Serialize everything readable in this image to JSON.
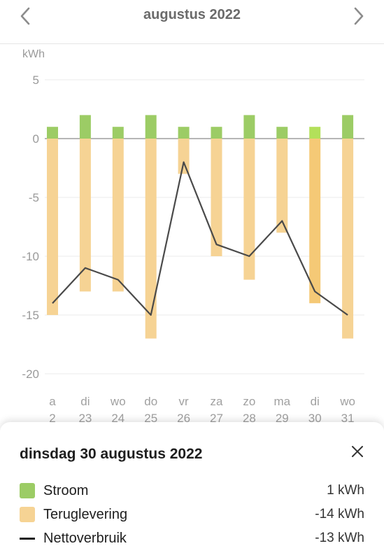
{
  "header": {
    "title": "augustus 2022",
    "prev_icon": "chevron-left-icon",
    "next_icon": "chevron-right-icon"
  },
  "chart_data": {
    "type": "bar",
    "y_unit": "kWh",
    "ylim": [
      -20,
      5
    ],
    "y_ticks": [
      5,
      0,
      -5,
      -10,
      -15,
      -20
    ],
    "grid": true,
    "categories": [
      {
        "day": "a",
        "date": "2"
      },
      {
        "day": "di",
        "date": "23"
      },
      {
        "day": "wo",
        "date": "24"
      },
      {
        "day": "do",
        "date": "25"
      },
      {
        "day": "vr",
        "date": "26"
      },
      {
        "day": "za",
        "date": "27"
      },
      {
        "day": "zo",
        "date": "28"
      },
      {
        "day": "ma",
        "date": "29"
      },
      {
        "day": "di",
        "date": "30"
      },
      {
        "day": "wo",
        "date": "31"
      }
    ],
    "selected_index": 8,
    "series": [
      {
        "name": "Stroom",
        "kind": "bar",
        "color": "#9ccc65",
        "selected_color": "#b3e05a",
        "values": [
          1,
          2,
          1,
          2,
          1,
          1,
          2,
          1,
          1,
          2
        ]
      },
      {
        "name": "Teruglevering",
        "kind": "bar",
        "color": "#f6d394",
        "selected_color": "#f5c976",
        "values": [
          -15,
          -13,
          -13,
          -17,
          -3,
          -10,
          -12,
          -8,
          -14,
          -17
        ]
      },
      {
        "name": "Nettoverbruik",
        "kind": "line",
        "color": "#4a4a4a",
        "values": [
          -14,
          -11,
          -12,
          -15,
          -2,
          -9,
          -10,
          -7,
          -13,
          -15
        ]
      }
    ]
  },
  "detail": {
    "title": "dinsdag 30 augustus 2022",
    "close_icon": "close-icon",
    "rows": [
      {
        "label": "Stroom",
        "value": "1 kWh",
        "color": "#9ccc65"
      },
      {
        "label": "Teruglevering",
        "value": "-14 kWh",
        "color": "#f6d394"
      },
      {
        "label": "Nettoverbruik",
        "value": "-13 kWh",
        "color": "#1e1e1e"
      }
    ]
  }
}
